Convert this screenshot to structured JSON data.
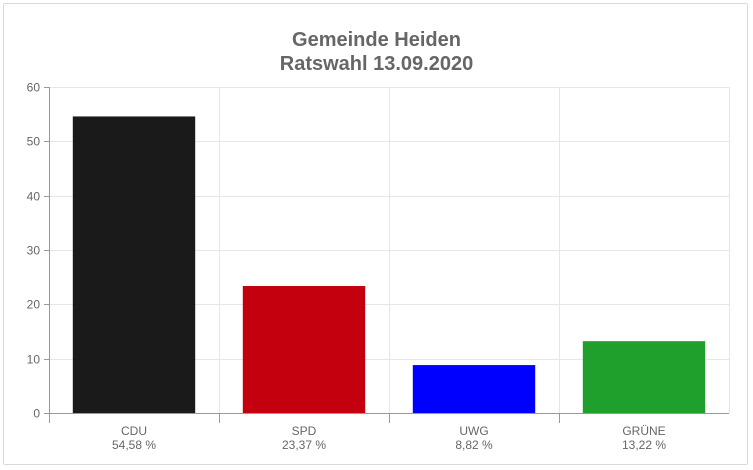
{
  "chart_data": {
    "type": "bar",
    "title": [
      "Gemeinde Heiden",
      "Ratswahl 13.09.2020"
    ],
    "categories": [
      "CDU",
      "SPD",
      "UWG",
      "GRÜNE"
    ],
    "value_labels": [
      "54,58 %",
      "23,37 %",
      "8,82 %",
      "13,22 %"
    ],
    "values": [
      54.58,
      23.37,
      8.82,
      13.22
    ],
    "colors": [
      "#1a1a1a",
      "#c4000f",
      "#0000ff",
      "#1fa02d"
    ],
    "ylim": [
      0,
      60
    ],
    "yticks": [
      "0",
      "10",
      "20",
      "30",
      "40",
      "50",
      "60"
    ],
    "grid": true,
    "legend": "none"
  }
}
